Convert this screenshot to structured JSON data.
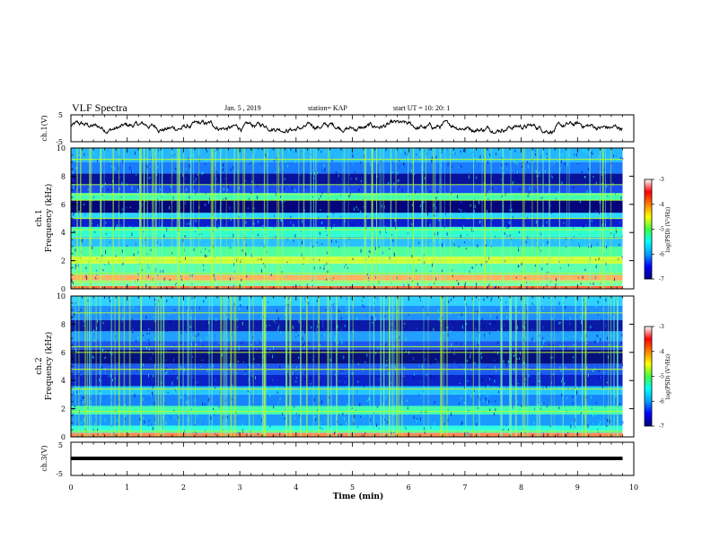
{
  "header": {
    "title": "VLF Spectra",
    "date": "Jan. 5 , 2019",
    "station": "station= KAP",
    "start": "start  UT =   10: 20: 1"
  },
  "chart_data": [
    {
      "type": "line",
      "name": "ch1-waveform",
      "ylabel": "ch.1(V)",
      "yticks": [
        "5",
        "-5"
      ],
      "ylim": [
        -5,
        5
      ],
      "approx_level": 0.5,
      "approx_amplitude": 2.0
    },
    {
      "type": "heatmap",
      "name": "ch1-spectrogram",
      "ylabel_line1": "ch.1",
      "ylabel_line2": "Frequency (kHz)",
      "ylim": [
        0,
        10
      ],
      "yticks": [
        "0",
        "2",
        "4",
        "6",
        "8",
        "10"
      ],
      "colorbar": {
        "label": "log(PSD) (V²/Hz)",
        "ticks": [
          "-3",
          "-4",
          "-5",
          "-6",
          "-7"
        ],
        "range": [
          -7,
          -3
        ],
        "colors": [
          "#000080",
          "#0000ff",
          "#00a0ff",
          "#00ffff",
          "#40ff40",
          "#ffff00",
          "#ff8000",
          "#ff0000",
          "#ffffff"
        ]
      },
      "bands_khz": [
        {
          "from": 0.0,
          "to": 0.2,
          "color": "#ff6a3a"
        },
        {
          "from": 0.2,
          "to": 0.6,
          "color": "#7fffb0"
        },
        {
          "from": 0.6,
          "to": 1.0,
          "color": "#ffb060"
        },
        {
          "from": 1.0,
          "to": 1.8,
          "color": "#5dffb0"
        },
        {
          "from": 1.8,
          "to": 2.3,
          "color": "#d4ff40"
        },
        {
          "from": 2.3,
          "to": 3.0,
          "color": "#50ffa0"
        },
        {
          "from": 3.0,
          "to": 3.7,
          "color": "#29c0ff"
        },
        {
          "from": 3.7,
          "to": 4.4,
          "color": "#30ffd0"
        },
        {
          "from": 4.4,
          "to": 5.0,
          "color": "#0b1fd0"
        },
        {
          "from": 5.0,
          "to": 5.4,
          "color": "#2ad6ff"
        },
        {
          "from": 5.4,
          "to": 6.3,
          "color": "#05047a"
        },
        {
          "from": 6.3,
          "to": 6.8,
          "color": "#40ffb0"
        },
        {
          "from": 6.8,
          "to": 7.4,
          "color": "#1a4df0"
        },
        {
          "from": 7.4,
          "to": 8.2,
          "color": "#08129a"
        },
        {
          "from": 8.2,
          "to": 9.0,
          "color": "#1a7cff"
        },
        {
          "from": 9.0,
          "to": 10.0,
          "color": "#25b8ff"
        }
      ],
      "lines_khz": [
        0.5,
        1.1,
        2.0,
        3.6,
        4.2,
        5.0,
        6.3,
        6.7,
        7.4,
        9.2
      ],
      "line_color": "#b4ff30"
    },
    {
      "type": "heatmap",
      "name": "ch2-spectrogram",
      "ylabel_line1": "ch.2",
      "ylabel_line2": "Frequency (kHz)",
      "ylim": [
        0,
        10
      ],
      "yticks": [
        "0",
        "2",
        "4",
        "6",
        "8",
        "10"
      ],
      "colorbar": {
        "label": "log(PSD) (V²/Hz)",
        "ticks": [
          "-3",
          "-4",
          "-5",
          "-6",
          "-7"
        ],
        "range": [
          -7,
          -3
        ],
        "colors": [
          "#000080",
          "#0000ff",
          "#00a0ff",
          "#00ffff",
          "#40ff40",
          "#ffff00",
          "#ff8000",
          "#ff0000",
          "#ffffff"
        ]
      },
      "bands_khz": [
        {
          "from": 0.0,
          "to": 0.3,
          "color": "#ff8a50"
        },
        {
          "from": 0.3,
          "to": 0.8,
          "color": "#30ffe0"
        },
        {
          "from": 0.8,
          "to": 1.6,
          "color": "#1a9cff"
        },
        {
          "from": 1.6,
          "to": 2.2,
          "color": "#40ffb0"
        },
        {
          "from": 2.2,
          "to": 3.0,
          "color": "#1686ff"
        },
        {
          "from": 3.0,
          "to": 3.6,
          "color": "#23c6ff"
        },
        {
          "from": 3.6,
          "to": 4.4,
          "color": "#0b22c8"
        },
        {
          "from": 4.4,
          "to": 5.2,
          "color": "#1c5cf0"
        },
        {
          "from": 5.2,
          "to": 6.2,
          "color": "#06107e"
        },
        {
          "from": 6.2,
          "to": 6.8,
          "color": "#1a56ee"
        },
        {
          "from": 6.8,
          "to": 7.5,
          "color": "#21a0ff"
        },
        {
          "from": 7.5,
          "to": 8.3,
          "color": "#0a1aa6"
        },
        {
          "from": 8.3,
          "to": 9.3,
          "color": "#1f90ff"
        },
        {
          "from": 9.3,
          "to": 10.0,
          "color": "#30d0ff"
        }
      ],
      "lines_khz": [
        0.4,
        1.8,
        3.4,
        4.8,
        6.0,
        6.4,
        8.8
      ],
      "line_color": "#b4ff30"
    },
    {
      "type": "line",
      "name": "ch3-waveform",
      "ylabel": "ch.3(V)",
      "yticks": [
        "5",
        "-5"
      ],
      "ylim": [
        -5,
        5
      ],
      "approx_level": 0.0,
      "approx_amplitude": 0.0
    }
  ],
  "xaxis": {
    "label": "Time  (min)",
    "ticks": [
      "0",
      "1",
      "2",
      "3",
      "4",
      "5",
      "6",
      "7",
      "8",
      "9",
      "10"
    ],
    "xlim": [
      0,
      10
    ],
    "data_end": 9.8
  }
}
